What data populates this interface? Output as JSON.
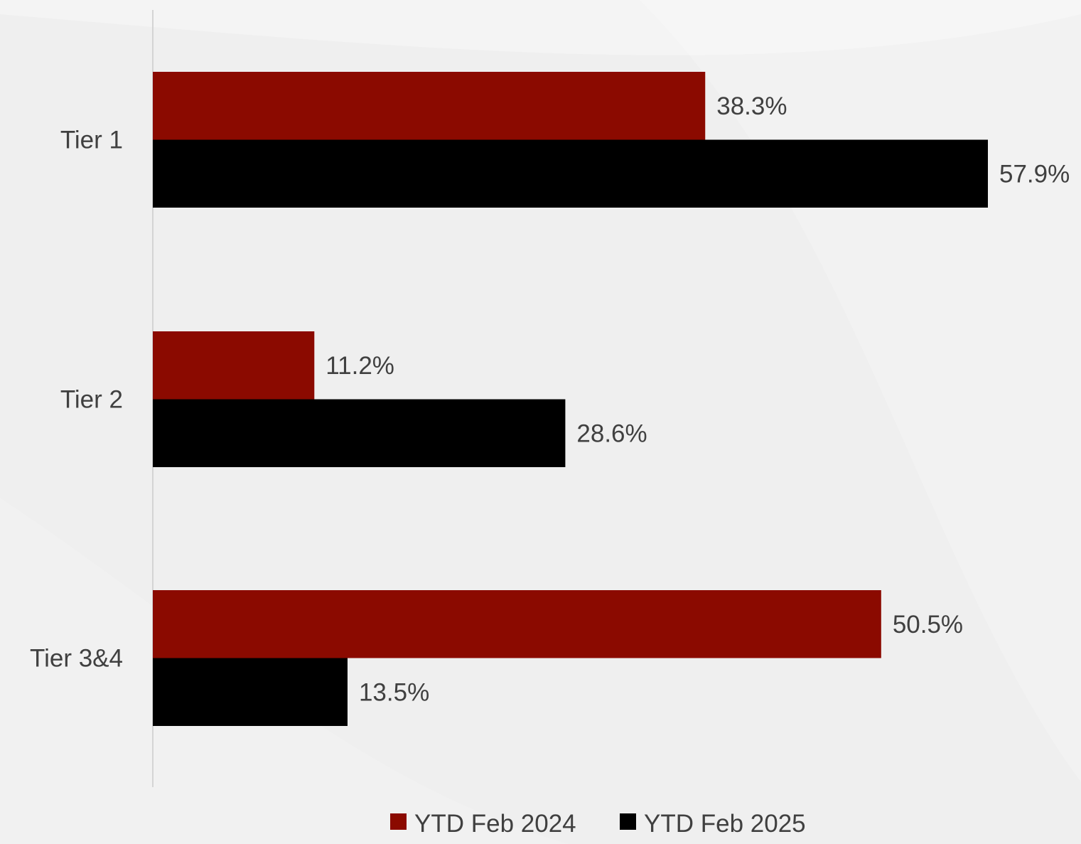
{
  "chart_data": {
    "type": "bar",
    "orientation": "horizontal",
    "title": "",
    "xlabel": "",
    "ylabel": "",
    "categories": [
      "Tier 1",
      "Tier 2",
      "Tier 3&4"
    ],
    "series": [
      {
        "name": "YTD Feb 2024",
        "color": "#8b0a00",
        "values": [
          38.3,
          11.2,
          50.5
        ],
        "labels": [
          "38.3%",
          "11.2%",
          "50.5%"
        ]
      },
      {
        "name": "YTD Feb 2025",
        "color": "#000000",
        "values": [
          57.9,
          28.6,
          13.5
        ],
        "labels": [
          "57.9%",
          "28.6%",
          "13.5%"
        ]
      }
    ],
    "xlim": [
      0,
      60
    ],
    "grid": false,
    "legend_position": "bottom"
  }
}
